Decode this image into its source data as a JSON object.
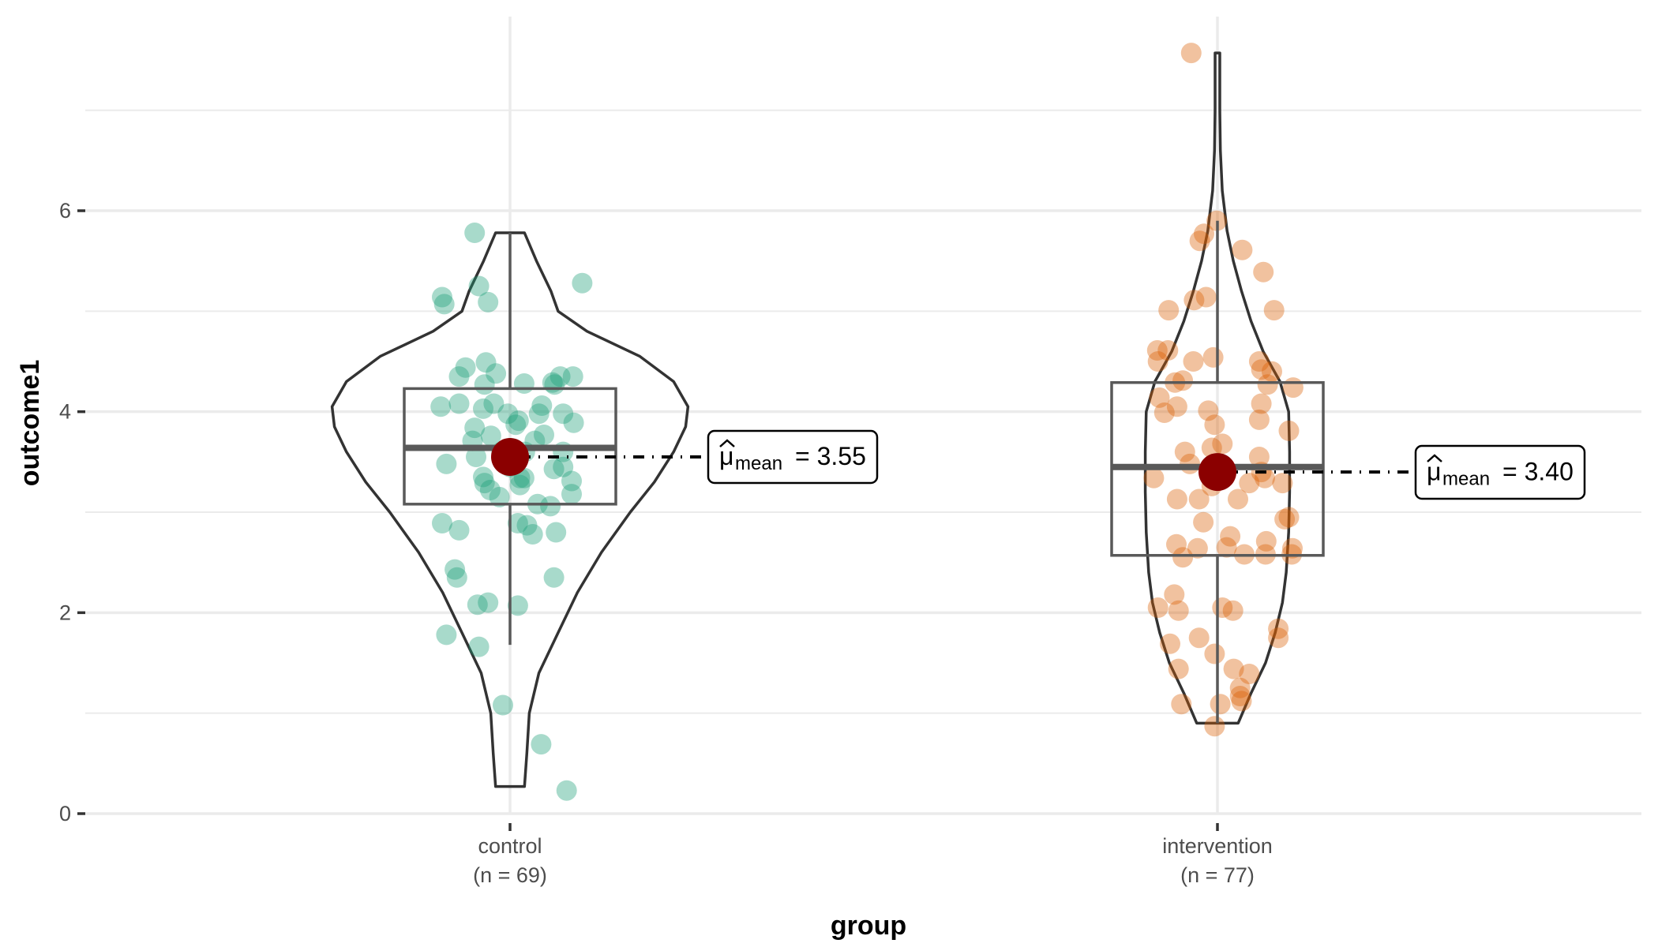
{
  "chart_data": {
    "type": "violin-box-scatter",
    "xlabel": "group",
    "ylabel": "outcome1",
    "ylim": [
      -0.3,
      7.9
    ],
    "yticks": [
      0,
      2,
      4,
      6
    ],
    "ytick_labels": [
      "0",
      "2",
      "4",
      "6"
    ],
    "minor_grid": [
      1,
      3,
      5,
      7
    ],
    "grid": true,
    "categories": [
      {
        "name": "control",
        "n_label": "(n = 69)",
        "color": "#1B9E77",
        "mean": 3.55,
        "mean_label_symbol": "μ",
        "mean_label_sub": "mean",
        "mean_label_value": "= 3.55",
        "box": {
          "q1": 3.08,
          "median": 3.64,
          "q3": 4.23,
          "whisker_low": 1.68,
          "whisker_high": 5.78
        },
        "violin": [
          [
            0.27,
            0.03
          ],
          [
            0.6,
            0.035
          ],
          [
            1.0,
            0.04
          ],
          [
            1.4,
            0.06
          ],
          [
            1.8,
            0.1
          ],
          [
            2.2,
            0.14
          ],
          [
            2.6,
            0.19
          ],
          [
            3.0,
            0.25
          ],
          [
            3.3,
            0.3
          ],
          [
            3.6,
            0.34
          ],
          [
            3.85,
            0.365
          ],
          [
            4.05,
            0.37
          ],
          [
            4.3,
            0.34
          ],
          [
            4.55,
            0.27
          ],
          [
            4.8,
            0.16
          ],
          [
            5.0,
            0.1
          ],
          [
            5.2,
            0.085
          ],
          [
            5.5,
            0.055
          ],
          [
            5.78,
            0.03
          ]
        ],
        "points": [
          [
            -0.05,
            5.78
          ],
          [
            -0.096,
            5.14
          ],
          [
            -0.093,
            5.07
          ],
          [
            -0.044,
            5.25
          ],
          [
            -0.031,
            5.09
          ],
          [
            0.102,
            5.28
          ],
          [
            -0.034,
            4.49
          ],
          [
            -0.063,
            4.44
          ],
          [
            -0.072,
            4.35
          ],
          [
            0.02,
            4.28
          ],
          [
            0.071,
            4.35
          ],
          [
            0.089,
            4.35
          ],
          [
            0.063,
            4.27
          ],
          [
            -0.036,
            4.27
          ],
          [
            -0.02,
            4.38
          ],
          [
            -0.098,
            4.05
          ],
          [
            -0.072,
            4.08
          ],
          [
            -0.038,
            4.03
          ],
          [
            -0.003,
            3.98
          ],
          [
            0.041,
            3.98
          ],
          [
            0.075,
            3.98
          ],
          [
            0.09,
            3.89
          ],
          [
            -0.05,
            3.84
          ],
          [
            -0.027,
            3.76
          ],
          [
            0.012,
            3.91
          ],
          [
            -0.09,
            3.48
          ],
          [
            -0.028,
            3.22
          ],
          [
            -0.038,
            3.35
          ],
          [
            0.014,
            3.27
          ],
          [
            0.062,
            3.43
          ],
          [
            0.075,
            3.6
          ],
          [
            0.087,
            3.31
          ],
          [
            0.087,
            3.18
          ],
          [
            0.039,
            3.08
          ],
          [
            0.057,
            3.06
          ],
          [
            0.014,
            3.34
          ],
          [
            -0.096,
            2.89
          ],
          [
            -0.072,
            2.82
          ],
          [
            0.011,
            2.89
          ],
          [
            0.032,
            2.78
          ],
          [
            0.065,
            2.8
          ],
          [
            0.024,
            2.87
          ],
          [
            -0.078,
            2.43
          ],
          [
            -0.075,
            2.35
          ],
          [
            -0.031,
            2.1
          ],
          [
            -0.046,
            2.08
          ],
          [
            0.011,
            2.07
          ],
          [
            0.062,
            2.35
          ],
          [
            -0.09,
            1.78
          ],
          [
            -0.044,
            1.66
          ],
          [
            -0.01,
            1.08
          ],
          [
            0.044,
            0.69
          ],
          [
            0.08,
            0.23
          ],
          [
            0.021,
            3.6
          ],
          [
            -0.012,
            3.6
          ],
          [
            0.0,
            3.45
          ],
          [
            0.005,
            3.56
          ],
          [
            0.035,
            3.71
          ],
          [
            0.048,
            3.77
          ],
          [
            0.008,
            3.87
          ],
          [
            -0.048,
            3.55
          ],
          [
            0.075,
            3.45
          ],
          [
            -0.036,
            3.29
          ],
          [
            -0.053,
            3.71
          ],
          [
            -0.023,
            4.08
          ],
          [
            0.045,
            4.06
          ],
          [
            0.06,
            4.29
          ],
          [
            0.02,
            3.34
          ],
          [
            -0.015,
            3.15
          ]
        ]
      },
      {
        "name": "intervention",
        "n_label": "(n = 77)",
        "color": "#D95F02",
        "mean": 3.4,
        "mean_label_symbol": "μ",
        "mean_label_sub": "mean",
        "mean_label_value": "= 3.40",
        "box": {
          "q1": 2.57,
          "median": 3.45,
          "q3": 4.29,
          "whisker_low": 0.9,
          "whisker_high": 5.9
        },
        "violin": [
          [
            0.9,
            0.043
          ],
          [
            1.2,
            0.07
          ],
          [
            1.5,
            0.1
          ],
          [
            1.8,
            0.12
          ],
          [
            2.1,
            0.135
          ],
          [
            2.4,
            0.143
          ],
          [
            2.8,
            0.148
          ],
          [
            3.2,
            0.15
          ],
          [
            3.6,
            0.15
          ],
          [
            4.0,
            0.148
          ],
          [
            4.3,
            0.13
          ],
          [
            4.6,
            0.095
          ],
          [
            4.9,
            0.07
          ],
          [
            5.2,
            0.05
          ],
          [
            5.5,
            0.033
          ],
          [
            5.8,
            0.02
          ],
          [
            6.2,
            0.01
          ],
          [
            6.6,
            0.006
          ],
          [
            7.0,
            0.005
          ],
          [
            7.57,
            0.005
          ]
        ],
        "points": [
          [
            -0.037,
            7.57
          ],
          [
            -0.001,
            5.9
          ],
          [
            -0.019,
            5.77
          ],
          [
            -0.025,
            5.7
          ],
          [
            0.035,
            5.61
          ],
          [
            0.065,
            5.39
          ],
          [
            0.08,
            5.01
          ],
          [
            -0.069,
            5.01
          ],
          [
            -0.033,
            5.11
          ],
          [
            -0.016,
            5.14
          ],
          [
            -0.085,
            4.61
          ],
          [
            -0.07,
            4.61
          ],
          [
            -0.034,
            4.5
          ],
          [
            -0.006,
            4.54
          ],
          [
            0.059,
            4.5
          ],
          [
            0.077,
            4.4
          ],
          [
            0.062,
            4.42
          ],
          [
            0.107,
            4.24
          ],
          [
            0.071,
            4.27
          ],
          [
            -0.084,
            4.5
          ],
          [
            -0.06,
            4.29
          ],
          [
            -0.049,
            4.31
          ],
          [
            -0.082,
            4.14
          ],
          [
            -0.075,
            3.99
          ],
          [
            -0.057,
            4.05
          ],
          [
            -0.013,
            4.01
          ],
          [
            -0.004,
            3.87
          ],
          [
            0.062,
            4.08
          ],
          [
            0.059,
            3.92
          ],
          [
            0.101,
            3.81
          ],
          [
            0.007,
            3.68
          ],
          [
            -0.046,
            3.6
          ],
          [
            -0.039,
            3.48
          ],
          [
            0.059,
            3.55
          ],
          [
            0.062,
            3.4
          ],
          [
            0.045,
            3.29
          ],
          [
            0.067,
            3.34
          ],
          [
            0.092,
            3.29
          ],
          [
            -0.09,
            3.34
          ],
          [
            -0.026,
            3.13
          ],
          [
            -0.057,
            3.13
          ],
          [
            -0.02,
            2.9
          ],
          [
            0.101,
            2.95
          ],
          [
            0.095,
            2.93
          ],
          [
            0.018,
            2.76
          ],
          [
            -0.058,
            2.68
          ],
          [
            -0.028,
            2.64
          ],
          [
            -0.049,
            2.55
          ],
          [
            0.013,
            2.65
          ],
          [
            0.038,
            2.58
          ],
          [
            0.068,
            2.58
          ],
          [
            0.069,
            2.71
          ],
          [
            0.106,
            2.64
          ],
          [
            0.105,
            2.58
          ],
          [
            -0.061,
            2.18
          ],
          [
            -0.055,
            2.02
          ],
          [
            -0.084,
            2.05
          ],
          [
            0.007,
            2.05
          ],
          [
            0.022,
            2.02
          ],
          [
            -0.026,
            1.75
          ],
          [
            -0.067,
            1.69
          ],
          [
            0.086,
            1.84
          ],
          [
            0.086,
            1.75
          ],
          [
            -0.004,
            1.59
          ],
          [
            -0.055,
            1.44
          ],
          [
            0.023,
            1.44
          ],
          [
            0.045,
            1.39
          ],
          [
            0.032,
            1.25
          ],
          [
            0.034,
            1.12
          ],
          [
            -0.051,
            1.09
          ],
          [
            0.004,
            1.09
          ],
          [
            -0.004,
            0.87
          ],
          [
            0.032,
            1.17
          ],
          [
            -0.008,
            3.26
          ],
          [
            -0.004,
            3.38
          ],
          [
            0.029,
            3.13
          ],
          [
            -0.008,
            3.64
          ]
        ]
      }
    ],
    "mean_point_color": "#8B0000"
  }
}
